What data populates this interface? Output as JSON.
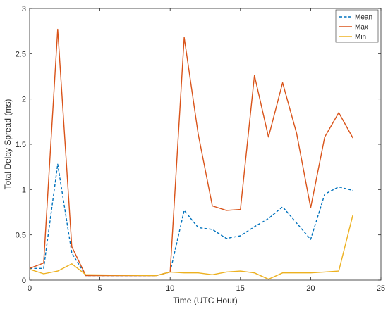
{
  "chart_data": {
    "type": "line",
    "xlabel": "Time (UTC Hour)",
    "ylabel": "Total Delay Spread (ms)",
    "xlim": [
      0,
      25
    ],
    "ylim": [
      0,
      3
    ],
    "xticks": [
      0,
      5,
      10,
      15,
      20,
      25
    ],
    "yticks": [
      0,
      0.5,
      1,
      1.5,
      2,
      2.5,
      3
    ],
    "xtick_labels": [
      "0",
      "5",
      "10",
      "15",
      "20",
      "25"
    ],
    "ytick_labels": [
      "0",
      "0.5",
      "1",
      "1.5",
      "2",
      "2.5",
      "3"
    ],
    "grid": false,
    "legend_position": "top-right",
    "series": [
      {
        "name": "Mean",
        "color": "#0072BD",
        "style": "dashed",
        "x": [
          0,
          1,
          2,
          3,
          4,
          9,
          10,
          11,
          12,
          13,
          14,
          15,
          16,
          17,
          18,
          19,
          20,
          21,
          22,
          23
        ],
        "y": [
          0.13,
          0.13,
          1.28,
          0.3,
          0.05,
          0.05,
          0.09,
          0.77,
          0.58,
          0.56,
          0.46,
          0.49,
          0.59,
          0.68,
          0.81,
          0.63,
          0.45,
          0.95,
          1.03,
          0.99
        ]
      },
      {
        "name": "Max",
        "color": "#D95319",
        "style": "solid",
        "x": [
          0,
          1,
          2,
          3,
          4,
          9,
          10,
          11,
          12,
          13,
          14,
          15,
          16,
          17,
          18,
          19,
          20,
          21,
          22,
          23
        ],
        "y": [
          0.13,
          0.19,
          2.77,
          0.37,
          0.05,
          0.05,
          0.09,
          2.68,
          1.61,
          0.82,
          0.77,
          0.78,
          2.26,
          1.58,
          2.18,
          1.62,
          0.8,
          1.58,
          1.85,
          1.57
        ]
      },
      {
        "name": "Min",
        "color": "#EDB120",
        "style": "solid",
        "x": [
          0,
          1,
          2,
          3,
          4,
          9,
          10,
          11,
          12,
          13,
          14,
          15,
          16,
          17,
          18,
          19,
          20,
          21,
          22,
          23
        ],
        "y": [
          0.12,
          0.07,
          0.1,
          0.18,
          0.06,
          0.05,
          0.09,
          0.08,
          0.08,
          0.06,
          0.09,
          0.1,
          0.08,
          0.01,
          0.08,
          0.08,
          0.08,
          0.09,
          0.1,
          0.72
        ]
      }
    ]
  }
}
